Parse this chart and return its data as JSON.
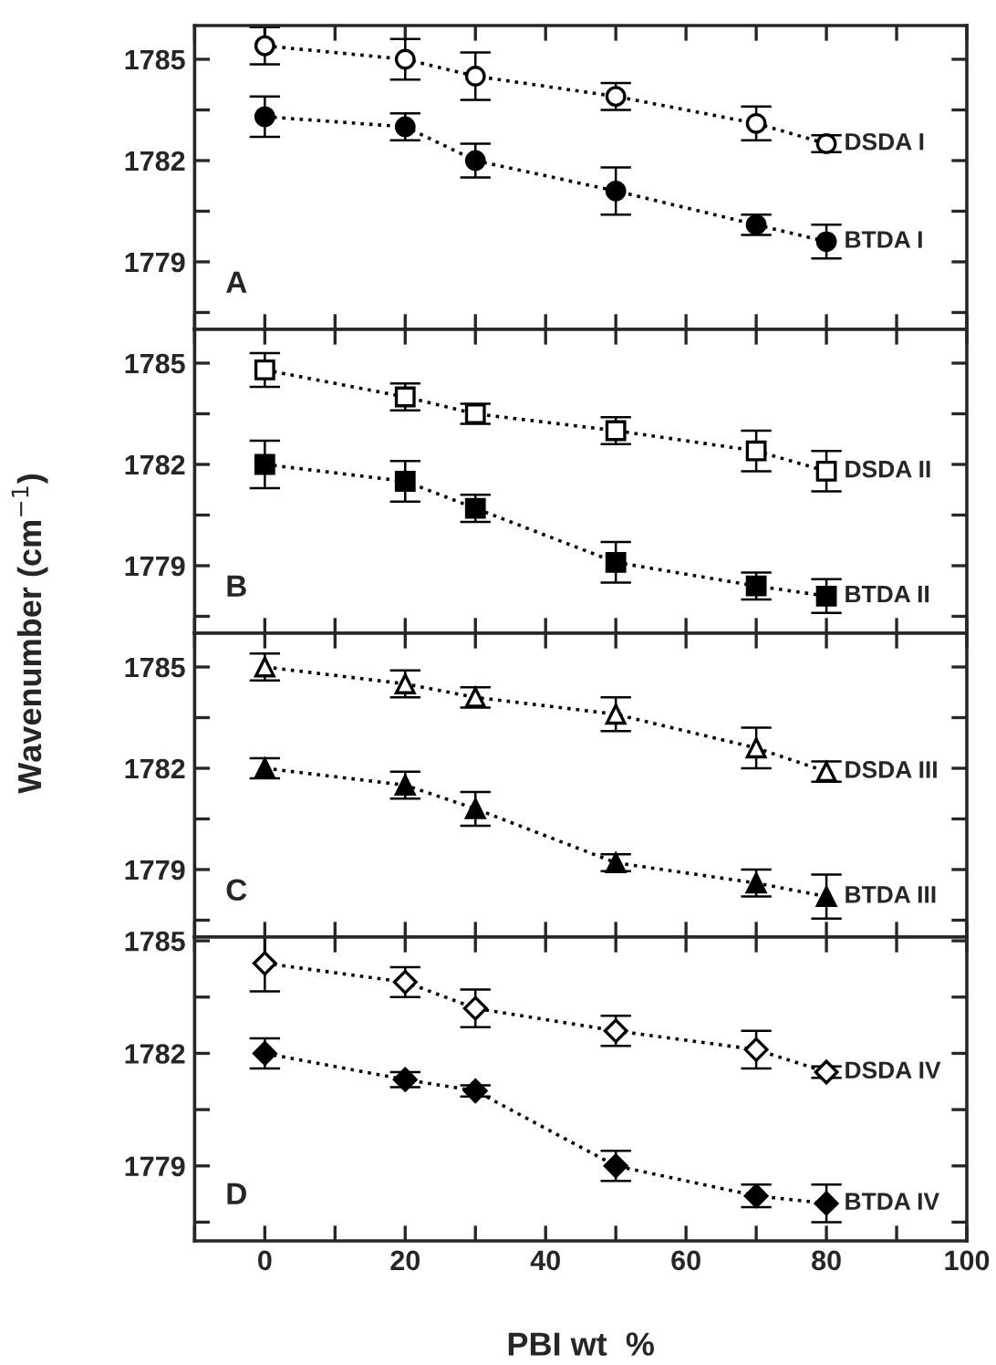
{
  "chart_data": [
    {
      "type": "line",
      "ylabel": "Wavenumber (cm$^{−1}$)",
      "annotations": [
        "A"
      ],
      "x": [
        0,
        20,
        30,
        50,
        70,
        80
      ],
      "xlim": [
        -10,
        100
      ],
      "xticks": [
        {
          "value": -10,
          "label": null
        },
        {
          "value": 0,
          "label": null
        },
        {
          "value": 10,
          "label": null
        },
        {
          "value": 20,
          "label": null
        },
        {
          "value": 30,
          "label": null
        },
        {
          "value": 40,
          "label": null
        },
        {
          "value": 50,
          "label": null
        },
        {
          "value": 60,
          "label": null
        },
        {
          "value": 70,
          "label": null
        },
        {
          "value": 80,
          "label": null
        },
        {
          "value": 90,
          "label": null
        },
        {
          "value": 100,
          "label": null
        }
      ],
      "ylim": [
        1777,
        1786
      ],
      "yticks": [
        {
          "value": 1777.5,
          "label": null
        },
        1779,
        {
          "value": 1780.5,
          "label": null
        },
        1782,
        {
          "value": 1783.5,
          "label": null
        },
        1785
      ],
      "tick_labels": "y",
      "marker": "circle",
      "line_style": "dotted",
      "grid": false,
      "legend": false,
      "series": [
        {
          "name": "DSDA I",
          "color": "#ffffff",
          "values": [
            1785.4,
            1785.0,
            1784.5,
            1783.9,
            1783.1,
            1782.5
          ],
          "errors": [
            0.55,
            0.6,
            0.7,
            0.4,
            0.5,
            0.25
          ]
        },
        {
          "name": "BTDA I",
          "color": "#000000",
          "values": [
            1783.3,
            1783.0,
            1782.0,
            1781.1,
            1780.1,
            1779.6
          ],
          "errors": [
            0.6,
            0.4,
            0.5,
            0.7,
            0.3,
            0.5
          ]
        }
      ]
    },
    {
      "type": "line",
      "annotations": [
        "B"
      ],
      "x": [
        0,
        20,
        30,
        50,
        70,
        80
      ],
      "xlim": [
        -10,
        100
      ],
      "xticks": [
        {
          "value": -10,
          "label": null
        },
        {
          "value": 0,
          "label": null
        },
        {
          "value": 10,
          "label": null
        },
        {
          "value": 20,
          "label": null
        },
        {
          "value": 30,
          "label": null
        },
        {
          "value": 40,
          "label": null
        },
        {
          "value": 50,
          "label": null
        },
        {
          "value": 60,
          "label": null
        },
        {
          "value": 70,
          "label": null
        },
        {
          "value": 80,
          "label": null
        },
        {
          "value": 90,
          "label": null
        },
        {
          "value": 100,
          "label": null
        }
      ],
      "ylim": [
        1777,
        1786
      ],
      "yticks": [
        {
          "value": 1777.5,
          "label": null
        },
        1779,
        {
          "value": 1780.5,
          "label": null
        },
        1782,
        {
          "value": 1783.5,
          "label": null
        },
        1785
      ],
      "tick_labels": "y",
      "marker": "square",
      "line_style": "dotted",
      "grid": false,
      "legend": false,
      "series": [
        {
          "name": "DSDA II",
          "color": "#ffffff",
          "values": [
            1784.8,
            1784.0,
            1783.5,
            1783.0,
            1782.4,
            1781.8
          ],
          "errors": [
            0.5,
            0.4,
            0.3,
            0.4,
            0.6,
            0.6
          ]
        },
        {
          "name": "BTDA II",
          "color": "#000000",
          "values": [
            1782.0,
            1781.5,
            1780.7,
            1779.1,
            1778.4,
            1778.1
          ],
          "errors": [
            0.7,
            0.6,
            0.4,
            0.6,
            0.4,
            0.5
          ]
        }
      ]
    },
    {
      "type": "line",
      "annotations": [
        "C"
      ],
      "x": [
        0,
        20,
        30,
        50,
        70,
        80
      ],
      "xlim": [
        -10,
        100
      ],
      "xticks": [
        {
          "value": -10,
          "label": null
        },
        {
          "value": 0,
          "label": null
        },
        {
          "value": 10,
          "label": null
        },
        {
          "value": 20,
          "label": null
        },
        {
          "value": 30,
          "label": null
        },
        {
          "value": 40,
          "label": null
        },
        {
          "value": 50,
          "label": null
        },
        {
          "value": 60,
          "label": null
        },
        {
          "value": 70,
          "label": null
        },
        {
          "value": 80,
          "label": null
        },
        {
          "value": 90,
          "label": null
        },
        {
          "value": 100,
          "label": null
        }
      ],
      "ylim": [
        1777,
        1786
      ],
      "yticks": [
        {
          "value": 1777.5,
          "label": null
        },
        1779,
        {
          "value": 1780.5,
          "label": null
        },
        1782,
        {
          "value": 1783.5,
          "label": null
        },
        1785
      ],
      "tick_labels": "y",
      "marker": "triangle",
      "line_style": "dotted",
      "grid": false,
      "legend": false,
      "series": [
        {
          "name": "DSDA III",
          "color": "#ffffff",
          "values": [
            1785.0,
            1784.5,
            1784.1,
            1783.6,
            1782.6,
            1781.9
          ],
          "errors": [
            0.4,
            0.4,
            0.3,
            0.5,
            0.6,
            0.3
          ]
        },
        {
          "name": "BTDA III",
          "color": "#000000",
          "values": [
            1782.0,
            1781.5,
            1780.8,
            1779.2,
            1778.6,
            1778.2
          ],
          "errors": [
            0.3,
            0.4,
            0.5,
            0.25,
            0.4,
            0.65
          ]
        }
      ]
    },
    {
      "type": "line",
      "xlabel": "PBI wt  %",
      "annotations": [
        "D"
      ],
      "x": [
        0,
        20,
        30,
        50,
        70,
        80
      ],
      "xlim": [
        -10,
        100
      ],
      "xticks": [
        {
          "value": -10,
          "label": null
        },
        0,
        {
          "value": 10,
          "label": null
        },
        20,
        {
          "value": 30,
          "label": null
        },
        40,
        {
          "value": 50,
          "label": null
        },
        60,
        {
          "value": 70,
          "label": null
        },
        80,
        {
          "value": 90,
          "label": null
        },
        100
      ],
      "ylim": [
        1777,
        1785.1
      ],
      "yticks": [
        {
          "value": 1777.5,
          "label": null
        },
        1779,
        {
          "value": 1780.5,
          "label": null
        },
        1782,
        {
          "value": 1783.5,
          "label": null
        },
        1785
      ],
      "marker": "diamond",
      "line_style": "dotted",
      "grid": false,
      "legend": false,
      "series": [
        {
          "name": "DSDA IV",
          "color": "#ffffff",
          "values": [
            1784.4,
            1783.9,
            1783.2,
            1782.6,
            1782.1,
            1781.5
          ],
          "errors": [
            0.75,
            0.4,
            0.5,
            0.4,
            0.5,
            0.15
          ]
        },
        {
          "name": "BTDA IV",
          "color": "#000000",
          "values": [
            1782.0,
            1781.3,
            1781.0,
            1779.0,
            1778.2,
            1778.0
          ],
          "errors": [
            0.4,
            0.2,
            0.15,
            0.4,
            0.3,
            0.5
          ]
        }
      ]
    }
  ]
}
